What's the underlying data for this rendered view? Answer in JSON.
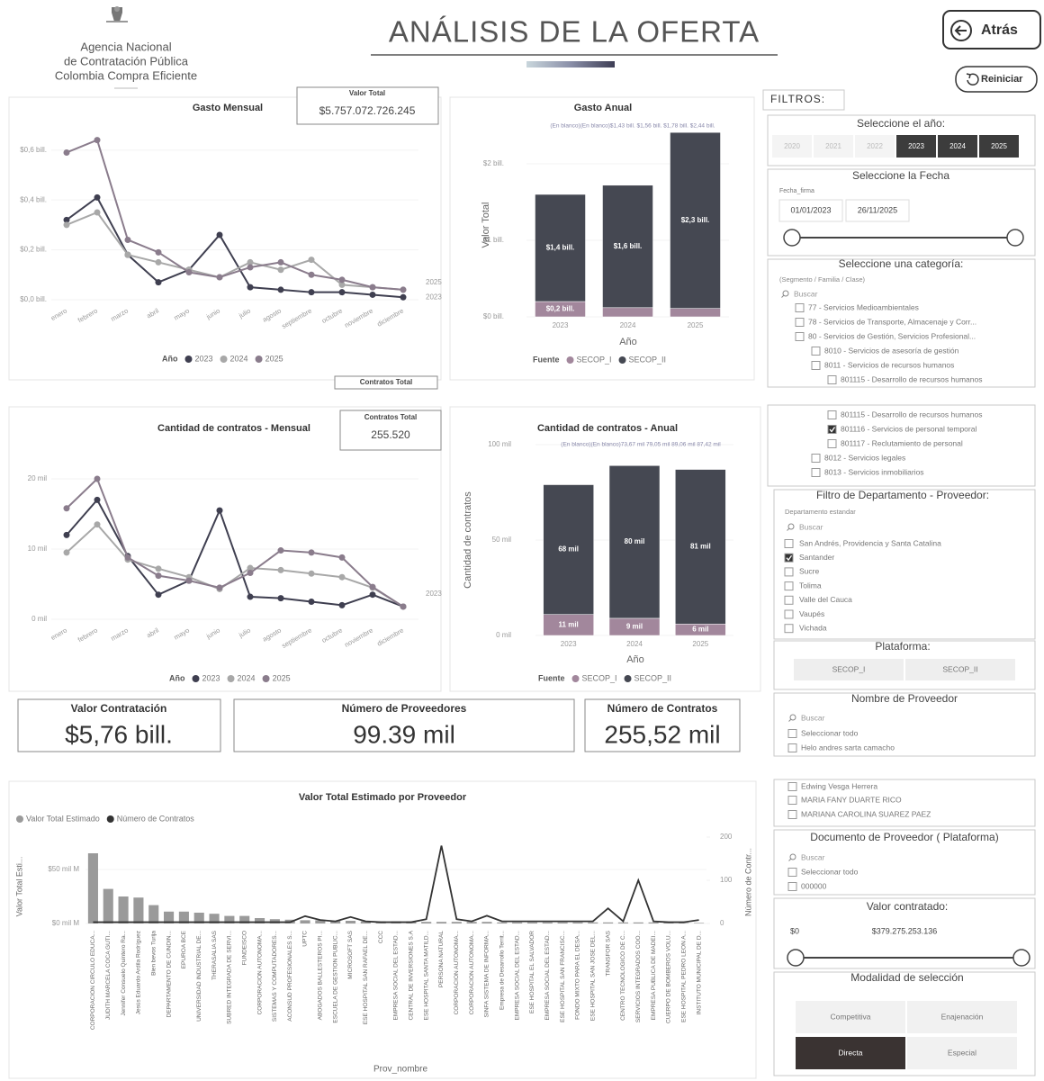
{
  "header": {
    "org": [
      "Agencia Nacional",
      "de Contratación Pública",
      "Colombia Compra Eficiente"
    ],
    "title": "ANÁLISIS DE LA OFERTA",
    "back": "Atrás",
    "reset": "Reiniciar"
  },
  "kpis": {
    "total_value": {
      "label": "Valor Total",
      "value": "$5.757.072.726.245"
    },
    "contracts_total": {
      "label": "Contratos Total",
      "value": "255.520"
    }
  },
  "cards": [
    {
      "label": "Valor Contratación",
      "value": "$5,76 bill."
    },
    {
      "label": "Número de Proveedores",
      "value": "99.39 mil"
    },
    {
      "label": "Número de Contratos",
      "value": "255,52 mil"
    }
  ],
  "chart_data": [
    {
      "type": "line",
      "title": "Gasto Mensual",
      "legend_title": "Año",
      "categories": [
        "enero",
        "febrero",
        "marzo",
        "abril",
        "mayo",
        "junio",
        "julio",
        "agosto",
        "septiembre",
        "octubre",
        "noviembre",
        "diciembre"
      ],
      "series": [
        {
          "name": "2023",
          "color": "#3f3f50",
          "values": [
            0.32,
            0.41,
            0.18,
            0.07,
            0.12,
            0.26,
            0.05,
            0.04,
            0.03,
            0.03,
            0.02,
            0.01
          ]
        },
        {
          "name": "2024",
          "color": "#a8a8a8",
          "values": [
            0.3,
            0.35,
            0.18,
            0.15,
            0.12,
            0.09,
            0.15,
            0.12,
            0.16,
            0.06,
            0.05,
            0.04
          ]
        },
        {
          "name": "2025",
          "color": "#8a7c8c",
          "values": [
            0.59,
            0.64,
            0.24,
            0.19,
            0.11,
            0.09,
            0.13,
            0.15,
            0.1,
            0.08,
            0.05,
            0.04
          ]
        }
      ],
      "ylim": [
        0,
        0.7
      ],
      "yticks": [
        {
          "value": 0,
          "label": "$0,0 bill."
        },
        {
          "value": 0.2,
          "label": "$0,2 bill."
        },
        {
          "value": 0.4,
          "label": "$0,4 bill."
        },
        {
          "value": 0.6,
          "label": "$0,6 bill."
        }
      ],
      "grid": true
    },
    {
      "type": "bar",
      "stacked": true,
      "title": "Gasto Anual",
      "annotation": "(En blanco)(En blanco)$1,43 bill.   $1,56 bill.  $1,78 bill.  $2,44 bill.",
      "y_label": "Valor Total",
      "x_label": "Año",
      "legend_title": "Fuente",
      "categories": [
        "2023",
        "2024",
        "2025"
      ],
      "series": [
        {
          "name": "SECOP_I",
          "color": "#a2879c",
          "values": [
            0.2,
            0.12,
            0.11
          ],
          "value_labels": [
            "$0,2 bill.",
            null,
            null
          ]
        },
        {
          "name": "SECOP_II",
          "color": "#454852",
          "values": [
            1.4,
            1.6,
            2.3
          ],
          "value_labels": [
            "$1,4 bill.",
            "$1,6 bill.",
            "$2,3 bill."
          ]
        }
      ],
      "ylim": [
        0,
        2.5
      ],
      "yticks": [
        {
          "value": 0,
          "label": "$0 bill."
        },
        {
          "value": 1,
          "label": "$1 bill."
        },
        {
          "value": 2,
          "label": "$2 bill."
        }
      ],
      "grid": true
    },
    {
      "type": "line",
      "title": "Cantidad de contratos - Mensual",
      "legend_title": "Año",
      "categories": [
        "enero",
        "febrero",
        "marzo",
        "abril",
        "mayo",
        "junio",
        "julio",
        "agosto",
        "septiembre",
        "octubre",
        "noviembre",
        "diciembre"
      ],
      "series": [
        {
          "name": "2023",
          "color": "#3f3f50",
          "values": [
            12,
            17,
            9,
            3.5,
            5.5,
            15.5,
            3.2,
            3,
            2.5,
            2,
            3.5,
            1.8
          ]
        },
        {
          "name": "2024",
          "color": "#a8a8a8",
          "values": [
            9.5,
            13.5,
            8.5,
            7.2,
            6,
            4.3,
            7.3,
            7,
            6.5,
            6,
            4.5,
            1.8
          ]
        },
        {
          "name": "2025",
          "color": "#8a7c8c",
          "values": [
            15.8,
            20,
            8.8,
            6.2,
            5.5,
            4.5,
            6.6,
            9.8,
            9.5,
            8.8,
            4.6,
            1.8
          ]
        }
      ],
      "ylim": [
        0,
        25
      ],
      "yticks": [
        {
          "value": 0,
          "label": "0 mil"
        },
        {
          "value": 10,
          "label": "10 mil"
        },
        {
          "value": 20,
          "label": "20 mil"
        }
      ],
      "grid": true
    },
    {
      "type": "bar",
      "stacked": true,
      "title": "Cantidad de contratos - Anual",
      "annotation": "(En blanco)(En blanco)73,67 mil   79,05 mil  89,06 mil  87,42 mil",
      "y_label": "Cantidad de contratos",
      "x_label": "Año",
      "legend_title": "Fuente",
      "categories": [
        "2023",
        "2024",
        "2025"
      ],
      "series": [
        {
          "name": "SECOP_I",
          "color": "#a2879c",
          "values": [
            11,
            9,
            6
          ],
          "value_labels": [
            "11 mil",
            "9 mil",
            "6 mil"
          ]
        },
        {
          "name": "SECOP_II",
          "color": "#454852",
          "values": [
            68,
            80,
            81
          ],
          "value_labels": [
            "68 mil",
            "80 mil",
            "81 mil"
          ]
        }
      ],
      "ylim": [
        0,
        100
      ],
      "yticks": [
        {
          "value": 0,
          "label": "0 mil"
        },
        {
          "value": 50,
          "label": "50 mil"
        },
        {
          "value": 100,
          "label": "100 mil"
        }
      ],
      "grid": true
    },
    {
      "type": "combo",
      "title": "Valor Total Estimado por Proveedor",
      "y_label": "Valor Total Esti...",
      "y2_label": "Número de Contr...",
      "x_label": "Prov_nombre",
      "categories": [
        "CORPORACION CIRCULO EDUCA...",
        "JUDITH MARCELA COCA GUTI...",
        "Jennifer Consuelo Quintero Ra...",
        "Jesús Eduardo Ardila Rodríguez",
        "Bien bevos Turija",
        "DEPARTAMENTO DE CUNDIN...",
        "EPUROA BCE",
        "UNIVERSIDAD INDUSTRIAL DE...",
        "THERASALIA SAS",
        "SUBRED INTEGRADA DE SERVI...",
        "FUNDEISCO",
        "CORPORACION AUTONOMA...",
        "SISTEMAS Y COMPUTADORES...",
        "ACONSUD PROFESIONALES S...",
        "UPTC",
        "ABOGADOS BALLESTEROS PI...",
        "ESCUELA DE GESTION PUBLIC...",
        "MICROSOFT SAS",
        "ESE HOSPITAL SAN RAFAEL DE...",
        "CCC",
        "EMPRESA SOCIAL DEL ESTAD...",
        "CENTRAL DE INVERSIONES S.A",
        "ESE HOSPITAL SANTA MATILD...",
        "PERSONA NATURAL",
        "CORPORACION AUTONOMA...",
        "CORPORACION AUTONOMA...",
        "SINFA SISTEMA DE INFORMA...",
        "Empresa de Desarrollo Territ...",
        "EMPRESA SOCIAL DEL ESTAD...",
        "ESE HOSPITAL EL SALVADOR",
        "EMPRESA SOCIAL DEL ESTAD...",
        "ESE HOSPITAL SAN FRANCISC...",
        "FONDO MIXTO PARA EL DESA...",
        "ESE HOSPITAL SAN JOSE DEL...",
        "TRANSFOR SAS",
        "CENTRO TECNOLOGICO DE C...",
        "SERVICIOS INTEGRADOS COO...",
        "EMPRESA PUBLICA DE MADEI...",
        "CUERPO DE BOMBEROS VOLU...",
        "ESE HOSPITAL PEDRO LEON A...",
        "INSTITUTO MUNICIPAL DE D..."
      ],
      "series": [
        {
          "name": "Valor Total Estimado",
          "color": "#9a9a9a",
          "values": [
            65,
            32,
            25,
            24,
            17,
            11,
            11,
            10,
            9,
            7,
            7,
            5,
            4,
            3.5,
            3,
            3,
            2.5,
            2.5,
            2,
            2,
            2,
            2,
            1.5,
            1.5,
            1.5,
            1.5,
            1.5,
            1,
            1,
            1,
            1,
            1,
            1,
            1,
            1,
            1,
            1,
            1,
            1,
            0.5,
            0.5
          ]
        },
        {
          "name": "Número de Contratos",
          "color": "#333333",
          "axis": "y2",
          "values": [
            3,
            3,
            3,
            3,
            3,
            3,
            3,
            3,
            3,
            3,
            3,
            3,
            3,
            3,
            17,
            8,
            5,
            15,
            5,
            3,
            3,
            3,
            10,
            180,
            10,
            5,
            18,
            5,
            5,
            5,
            5,
            5,
            5,
            5,
            35,
            5,
            100,
            5,
            3,
            3,
            8
          ]
        }
      ],
      "ylim": [
        0,
        80
      ],
      "yticks": [
        {
          "value": 0,
          "label": "$0 mil M"
        },
        {
          "value": 50,
          "label": "$50 mil M"
        }
      ],
      "y2lim": [
        0,
        200
      ],
      "y2ticks": [
        0,
        100,
        200
      ],
      "grid": true
    }
  ],
  "filters": {
    "title": "FILTROS:",
    "year": {
      "title": "Seleccione el año:",
      "options": [
        "2020",
        "2021",
        "2022",
        "2023",
        "2024",
        "2025"
      ],
      "selected": [
        false,
        false,
        false,
        true,
        true,
        true
      ]
    },
    "date": {
      "title": "Seleccione la Fecha",
      "field": "Fecha_firma",
      "start": "01/01/2023",
      "end": "26/11/2025"
    },
    "category": {
      "title": "Seleccione una categoría:",
      "subtitle": "(Segmento / Familia / Clase)",
      "search": "Buscar",
      "items": [
        {
          "label": "77 - Servicios Medioambientales",
          "level": 0,
          "checked": false
        },
        {
          "label": "78 - Servicios de Transporte, Almacenaje y Corr...",
          "level": 0,
          "checked": false
        },
        {
          "label": "80 - Servicios de Gestión, Servicios Profesional...",
          "level": 0,
          "checked": false
        },
        {
          "label": "8010 - Servicios de asesoría de gestión",
          "level": 1,
          "checked": false
        },
        {
          "label": "8011 - Servicios de recursos humanos",
          "level": 1,
          "checked": false
        },
        {
          "label": "801115 - Desarrollo de recursos humanos",
          "level": 2,
          "checked": false
        },
        {
          "label": "801116 - Servicios de personal temporal",
          "level": 2,
          "checked": true
        },
        {
          "label": "801117 - Reclutamiento de personal",
          "level": 2,
          "checked": false
        },
        {
          "label": "8012 - Servicios legales",
          "level": 1,
          "checked": false
        },
        {
          "label": "8013 - Servicios inmobiliarios",
          "level": 1,
          "checked": false
        }
      ]
    },
    "department": {
      "title": "Filtro de Departamento - Proveedor:",
      "subtitle": "Departamento estandar",
      "search": "Buscar",
      "items": [
        {
          "label": "San Andrés, Providencia y Santa Catalina",
          "checked": false
        },
        {
          "label": "Santander",
          "checked": true
        },
        {
          "label": "Sucre",
          "checked": false
        },
        {
          "label": "Tolima",
          "checked": false
        },
        {
          "label": "Valle del Cauca",
          "checked": false
        },
        {
          "label": "Vaupés",
          "checked": false
        },
        {
          "label": "Vichada",
          "checked": false
        }
      ]
    },
    "platform": {
      "title": "Plataforma:",
      "options": [
        "SECOP_I",
        "SECOP_II"
      ]
    },
    "supplier": {
      "title": "Nombre de Proveedor",
      "search": "Buscar",
      "select_all": "Seleccionar todo",
      "items": [
        "Helo andres sarta camacho",
        "Edwing Vesga Herrera",
        "MARIA FANY DUARTE RICO",
        "MARIANA CAROLINA SUAREZ PAEZ"
      ]
    },
    "document": {
      "title": "Documento de Proveedor ( Plataforma)",
      "search": "Buscar",
      "select_all": "Seleccionar todo",
      "items": [
        "000000"
      ]
    },
    "amount": {
      "title": "Valor contratado:",
      "min": "$0",
      "max": "$379.275.253.136"
    },
    "modality": {
      "title": "Modalidad de selección",
      "options": [
        "Competitiva",
        "Enajenación",
        "Directa",
        "Especial"
      ],
      "selected": [
        false,
        false,
        true,
        false
      ]
    }
  }
}
